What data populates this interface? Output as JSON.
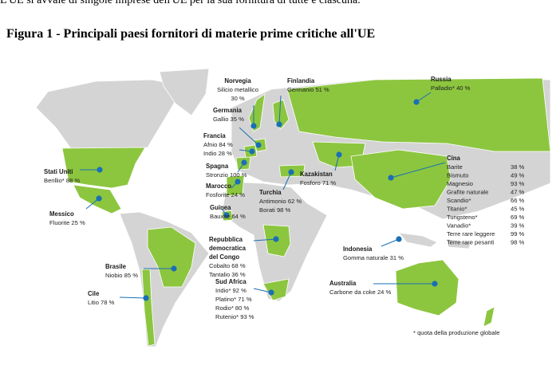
{
  "intro": "L'UE si avvale di singole imprese dell'UE per la sua fornitura di tutte e ciascuna.",
  "title": "Figura 1 - Principali paesi fornitori di materie prime critiche all'UE",
  "countries": [
    {
      "name": "Norvegia",
      "items": [
        "Silicio metallico",
        "30 %"
      ]
    },
    {
      "name": "Finlandia",
      "items": [
        "Germanio 51 %"
      ]
    },
    {
      "name": "Russia",
      "items": [
        "Palladio* 40 %"
      ]
    },
    {
      "name": "Germania",
      "items": [
        "Gallio 35 %"
      ]
    },
    {
      "name": "Francia",
      "items": [
        "Afnio 84 %",
        "Indio 28 %"
      ]
    },
    {
      "name": "Spagna",
      "items": [
        "Stronzio 100 %"
      ]
    },
    {
      "name": "Stati Uniti",
      "items": [
        "Berillio* 88 %"
      ]
    },
    {
      "name": "Marocco",
      "items": [
        "Fosforite 24 %"
      ]
    },
    {
      "name": "Messico",
      "items": [
        "Fluorite 25 %"
      ]
    },
    {
      "name": "Guinea",
      "items": [
        "Bauxite 64 %"
      ]
    },
    {
      "name": "Turchia",
      "items": [
        "Antimonio 62 %",
        "Borati 98 %"
      ]
    },
    {
      "name": "Kazakistan",
      "items": [
        "Fosforo 71 %"
      ]
    },
    {
      "name": [
        "Repubblica",
        "democratica",
        "del Congo"
      ],
      "items": [
        "Cobalto 68 %",
        "Tantalio 36 %"
      ]
    },
    {
      "name": "Brasile",
      "items": [
        "Niobio 85 %"
      ]
    },
    {
      "name": "Cile",
      "items": [
        "Litio 78 %"
      ]
    },
    {
      "name": "Sud Africa",
      "items": [
        "Iridio* 92 %",
        "Platino* 71 %",
        "Rodio* 80 %",
        "Rutenio* 93 %"
      ]
    },
    {
      "name": "Indonesia",
      "items": [
        "Gomma naturale 31 %"
      ]
    },
    {
      "name": "Australia",
      "items": [
        "Carbone da coke 24 %"
      ]
    }
  ],
  "china": {
    "name": "Cina",
    "rows": [
      [
        "Barite",
        "38 %"
      ],
      [
        "Bismuto",
        "49 %"
      ],
      [
        "Magnesio",
        "93 %"
      ],
      [
        "Grafite naturale",
        "47 %"
      ],
      [
        "Scandio*",
        "66 %"
      ],
      [
        "Titanio*",
        "45 %"
      ],
      [
        "Tungsteno*",
        "69 %"
      ],
      [
        "Vanadio*",
        "39 %"
      ],
      [
        "Terre rare leggere",
        "99 %"
      ],
      [
        "Terre rare pesanti",
        "98 %"
      ]
    ]
  },
  "footnote": "* quota della produzione globale"
}
